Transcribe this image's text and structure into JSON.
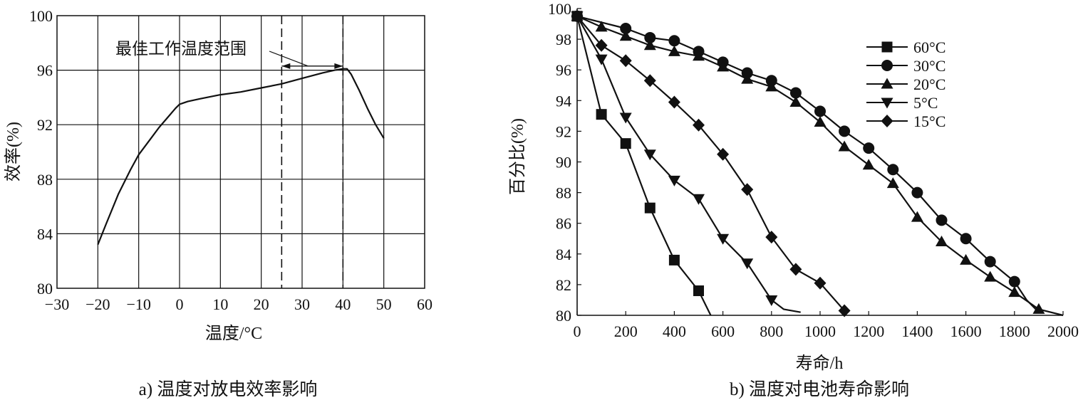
{
  "chart_data": [
    {
      "type": "line",
      "caption": "a) 温度对放电效率影响",
      "xlabel": "温度/°C",
      "ylabel": "效率(%)",
      "xlim": [
        -30,
        60
      ],
      "ylim": [
        80,
        100
      ],
      "xticks": [
        -30,
        -20,
        -10,
        0,
        10,
        20,
        30,
        40,
        50,
        60
      ],
      "xtick_labels": [
        "−30",
        "−20",
        "−10",
        "0",
        "10",
        "20",
        "30",
        "40",
        "50",
        "60"
      ],
      "yticks": [
        80,
        84,
        88,
        92,
        96,
        100
      ],
      "grid": true,
      "annotation": {
        "text": "最佳工作温度范围",
        "range": [
          25,
          40
        ]
      },
      "series": [
        {
          "x": [
            -20,
            -18,
            -15,
            -12,
            -10,
            -7,
            -5,
            -3,
            -1,
            0,
            2,
            5,
            10,
            15,
            20,
            25,
            30,
            35,
            38,
            40,
            41,
            42,
            44,
            46,
            48,
            50
          ],
          "y": [
            83.2,
            84.7,
            86.9,
            88.7,
            89.8,
            91.0,
            91.8,
            92.5,
            93.2,
            93.5,
            93.7,
            93.9,
            94.2,
            94.4,
            94.7,
            95.0,
            95.4,
            95.8,
            96.0,
            96.1,
            96.1,
            95.7,
            94.5,
            93.2,
            92.0,
            91.0
          ]
        }
      ]
    },
    {
      "type": "line",
      "caption": "b) 温度对电池寿命影响",
      "xlabel": "寿命/h",
      "ylabel": "百分比(%)",
      "xlim": [
        0,
        2000
      ],
      "ylim": [
        80,
        100
      ],
      "xticks": [
        0,
        200,
        400,
        600,
        800,
        1000,
        1200,
        1400,
        1600,
        1800,
        2000
      ],
      "yticks": [
        80,
        82,
        84,
        86,
        88,
        90,
        92,
        94,
        96,
        98,
        100
      ],
      "grid": false,
      "legend_position": "top-right",
      "series": [
        {
          "name": "60°C",
          "marker": "square",
          "x": [
            0,
            100,
            200,
            300,
            400,
            500,
            550
          ],
          "y": [
            99.5,
            93.1,
            91.2,
            87.0,
            83.6,
            81.6,
            80.0
          ],
          "marked": [
            true,
            true,
            true,
            true,
            true,
            true,
            false
          ]
        },
        {
          "name": "30°C",
          "marker": "circle",
          "x": [
            0,
            200,
            300,
            400,
            500,
            600,
            700,
            800,
            900,
            1000,
            1100,
            1200,
            1300,
            1400,
            1500,
            1600,
            1700,
            1800,
            1850,
            1900
          ],
          "y": [
            99.5,
            98.7,
            98.1,
            97.9,
            97.2,
            96.5,
            95.8,
            95.3,
            94.5,
            93.3,
            92.0,
            90.9,
            89.5,
            88.0,
            86.2,
            85.0,
            83.5,
            82.2,
            81.0,
            80.2
          ],
          "marked": [
            true,
            true,
            true,
            true,
            true,
            true,
            true,
            true,
            true,
            true,
            true,
            true,
            true,
            true,
            true,
            true,
            true,
            true,
            false,
            false
          ]
        },
        {
          "name": "20°C",
          "marker": "triangle-up",
          "x": [
            0,
            100,
            200,
            300,
            400,
            500,
            600,
            700,
            800,
            900,
            1000,
            1100,
            1200,
            1300,
            1400,
            1500,
            1600,
            1700,
            1800,
            1900,
            2000
          ],
          "y": [
            99.5,
            98.8,
            98.2,
            97.6,
            97.2,
            96.9,
            96.2,
            95.4,
            94.9,
            93.9,
            92.6,
            91.0,
            89.8,
            88.6,
            86.4,
            84.8,
            83.6,
            82.5,
            81.5,
            80.4,
            80.0
          ],
          "marked": [
            true,
            true,
            true,
            true,
            true,
            true,
            true,
            true,
            true,
            true,
            true,
            true,
            true,
            true,
            true,
            true,
            true,
            true,
            true,
            true,
            false
          ]
        },
        {
          "name": "5°C",
          "marker": "triangle-down",
          "x": [
            0,
            100,
            200,
            300,
            400,
            500,
            600,
            700,
            800,
            850,
            920
          ],
          "y": [
            99.5,
            96.7,
            92.9,
            90.5,
            88.8,
            87.6,
            85.0,
            83.4,
            81.0,
            80.4,
            80.2
          ],
          "marked": [
            true,
            true,
            true,
            true,
            true,
            true,
            true,
            true,
            true,
            false,
            false
          ]
        },
        {
          "name": "15°C",
          "marker": "diamond",
          "x": [
            0,
            100,
            200,
            300,
            400,
            500,
            600,
            700,
            800,
            900,
            1000,
            1100
          ],
          "y": [
            99.5,
            97.6,
            96.6,
            95.3,
            93.9,
            92.4,
            90.5,
            88.2,
            85.1,
            83.0,
            82.1,
            80.3
          ],
          "marked": [
            true,
            true,
            true,
            true,
            true,
            true,
            true,
            true,
            true,
            true,
            true,
            true
          ]
        }
      ]
    }
  ]
}
